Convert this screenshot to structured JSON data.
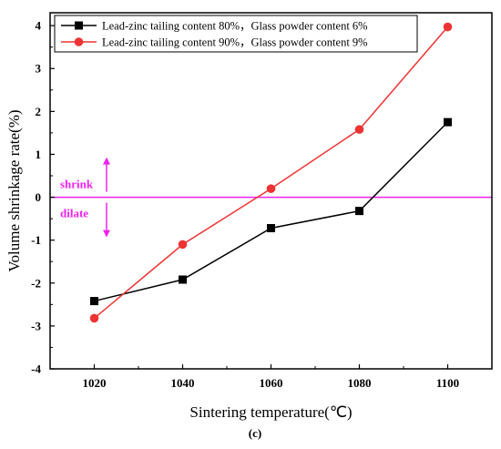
{
  "chart_data": {
    "type": "line",
    "x": [
      1020,
      1040,
      1060,
      1080,
      1100
    ],
    "series": [
      {
        "name": "Lead-zinc tailing content 80%，Glass powder content 6%",
        "color": "#000000",
        "marker": "square",
        "values": [
          -2.42,
          -1.92,
          -0.72,
          -0.32,
          1.75
        ]
      },
      {
        "name": "Lead-zinc tailing content 90%，Glass powder content 9%",
        "color": "#ee3333",
        "marker": "circle",
        "values": [
          -2.82,
          -1.1,
          0.2,
          1.58,
          3.97
        ]
      }
    ],
    "xlabel": "Sintering temperature(℃)",
    "ylabel": "Volume shrinkage rate(%)",
    "xlim": [
      1010,
      1110
    ],
    "ylim": [
      -4,
      4.3
    ],
    "xticks": [
      1020,
      1040,
      1060,
      1080,
      1100
    ],
    "yticks": [
      -4,
      -3,
      -2,
      -1,
      0,
      1,
      2,
      3,
      4
    ],
    "legend_position": "top-left",
    "reference_line": {
      "y": 0,
      "color": "#ee22ee"
    },
    "annotations": {
      "shrink": "shrink",
      "dilate": "dilate",
      "color": "#ee22ee"
    },
    "caption": "(c)"
  }
}
